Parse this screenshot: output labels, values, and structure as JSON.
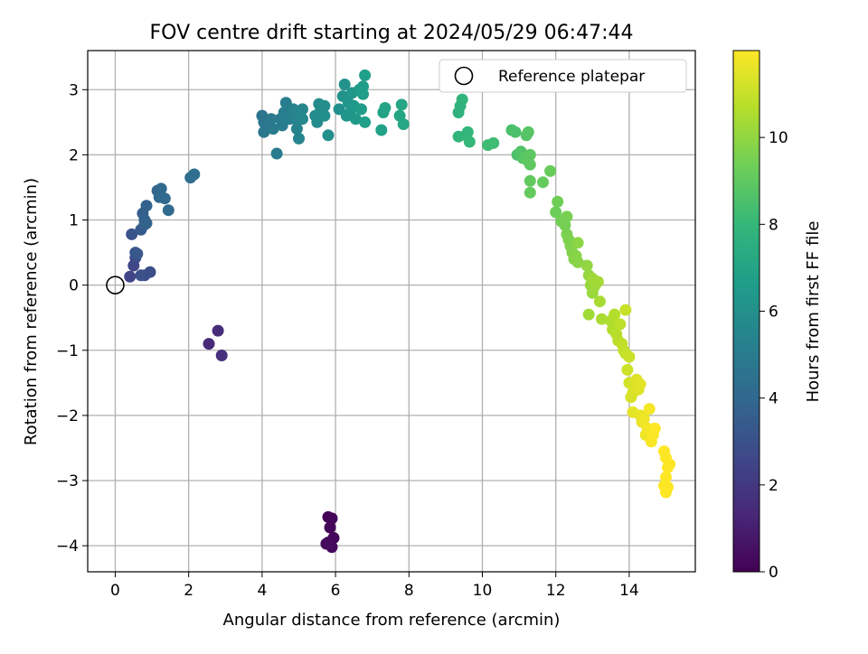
{
  "chart_data": {
    "type": "scatter",
    "title": "FOV centre drift starting at 2024/05/29 06:47:44",
    "xlabel": "Angular distance from reference (arcmin)",
    "ylabel": "Rotation from reference (arcmin)",
    "xlim": [
      -0.75,
      15.8
    ],
    "ylim": [
      -4.4,
      3.6
    ],
    "x_ticks": [
      0,
      2,
      4,
      6,
      8,
      10,
      12,
      14
    ],
    "y_ticks": [
      -4,
      -3,
      -2,
      -1,
      0,
      1,
      2,
      3
    ],
    "x_tick_labels": [
      "0",
      "2",
      "4",
      "6",
      "8",
      "10",
      "12",
      "14"
    ],
    "y_tick_labels": [
      "−4",
      "−3",
      "−2",
      "−1",
      "0",
      "1",
      "2",
      "3"
    ],
    "grid": true,
    "legend": {
      "placement": "top-right",
      "entries": [
        "Reference platepar"
      ]
    },
    "reference_point": {
      "x": 0,
      "y": 0
    },
    "colorbar": {
      "label": "Hours from first FF file",
      "min": 0,
      "max": 12,
      "ticks": [
        0,
        2,
        4,
        6,
        8,
        10
      ],
      "tick_labels": [
        "0",
        "2",
        "4",
        "6",
        "8",
        "10"
      ],
      "colormap": "viridis"
    },
    "series": [
      {
        "points": [
          [
            5.8,
            -3.56,
            0.05
          ],
          [
            5.9,
            -3.58,
            0.1
          ],
          [
            5.85,
            -3.72,
            0.15
          ],
          [
            5.95,
            -3.88,
            0.2
          ],
          [
            5.8,
            -3.95,
            0.25
          ],
          [
            5.9,
            -4.02,
            0.3
          ],
          [
            5.75,
            -3.97,
            0.35
          ],
          [
            2.55,
            -0.9,
            1.4
          ],
          [
            2.8,
            -0.7,
            1.5
          ],
          [
            2.9,
            -1.08,
            1.6
          ],
          [
            0.4,
            0.13,
            2.5
          ],
          [
            0.5,
            0.3,
            2.6
          ],
          [
            0.55,
            0.42,
            2.7
          ],
          [
            0.8,
            0.15,
            2.8
          ],
          [
            0.95,
            0.2,
            2.9
          ],
          [
            0.7,
            0.15,
            3.0
          ],
          [
            0.45,
            0.78,
            3.1
          ],
          [
            0.55,
            0.5,
            3.2
          ],
          [
            0.6,
            0.48,
            3.3
          ],
          [
            0.7,
            0.85,
            3.4
          ],
          [
            0.8,
            0.93,
            3.5
          ],
          [
            0.75,
            1.1,
            3.6
          ],
          [
            0.85,
            1.22,
            3.7
          ],
          [
            0.8,
            1.0,
            3.75
          ],
          [
            0.85,
            0.95,
            3.8
          ],
          [
            1.15,
            1.45,
            3.9
          ],
          [
            1.25,
            1.48,
            4.0
          ],
          [
            1.2,
            1.35,
            4.05
          ],
          [
            1.35,
            1.33,
            4.1
          ],
          [
            1.45,
            1.15,
            4.15
          ],
          [
            2.05,
            1.65,
            4.25
          ],
          [
            2.15,
            1.7,
            4.3
          ],
          [
            4.0,
            2.6,
            4.6
          ],
          [
            4.05,
            2.5,
            4.65
          ],
          [
            4.1,
            2.4,
            4.7
          ],
          [
            4.05,
            2.35,
            4.75
          ],
          [
            4.2,
            2.45,
            4.8
          ],
          [
            4.25,
            2.55,
            4.85
          ],
          [
            4.3,
            2.4,
            4.9
          ],
          [
            4.4,
            2.02,
            4.95
          ],
          [
            4.5,
            2.55,
            5.0
          ],
          [
            4.55,
            2.45,
            5.05
          ],
          [
            4.6,
            2.65,
            5.1
          ],
          [
            4.65,
            2.8,
            5.15
          ],
          [
            4.7,
            2.6,
            5.2
          ],
          [
            4.75,
            2.55,
            5.25
          ],
          [
            4.85,
            2.7,
            5.3
          ],
          [
            4.9,
            2.55,
            5.35
          ],
          [
            4.95,
            2.4,
            5.4
          ],
          [
            5.0,
            2.25,
            5.45
          ],
          [
            5.0,
            2.65,
            5.5
          ],
          [
            5.1,
            2.7,
            5.55
          ],
          [
            5.1,
            2.55,
            5.6
          ],
          [
            5.45,
            2.6,
            5.7
          ],
          [
            5.5,
            2.5,
            5.75
          ],
          [
            5.55,
            2.78,
            5.8
          ],
          [
            5.6,
            2.7,
            5.85
          ],
          [
            5.7,
            2.75,
            5.9
          ],
          [
            5.7,
            2.6,
            5.95
          ],
          [
            5.8,
            2.3,
            6.0
          ],
          [
            6.1,
            2.7,
            6.05
          ],
          [
            6.25,
            3.08,
            6.1
          ],
          [
            6.2,
            2.9,
            6.15
          ],
          [
            6.3,
            2.6,
            6.2
          ],
          [
            6.35,
            2.8,
            6.25
          ],
          [
            6.4,
            2.65,
            6.3
          ],
          [
            6.45,
            2.95,
            6.35
          ],
          [
            6.5,
            2.75,
            6.4
          ],
          [
            6.55,
            2.55,
            6.45
          ],
          [
            6.65,
            3.0,
            6.5
          ],
          [
            6.7,
            2.7,
            6.55
          ],
          [
            6.75,
            3.05,
            6.6
          ],
          [
            6.75,
            2.93,
            6.65
          ],
          [
            6.8,
            3.22,
            6.7
          ],
          [
            6.8,
            2.5,
            6.75
          ],
          [
            7.25,
            2.38,
            6.85
          ],
          [
            7.3,
            2.65,
            6.9
          ],
          [
            7.35,
            2.72,
            6.95
          ],
          [
            7.75,
            2.6,
            7.05
          ],
          [
            7.8,
            2.77,
            7.1
          ],
          [
            7.85,
            2.47,
            7.15
          ],
          [
            9.35,
            2.65,
            7.7
          ],
          [
            9.4,
            2.75,
            7.75
          ],
          [
            9.45,
            2.85,
            7.8
          ],
          [
            9.35,
            2.28,
            7.85
          ],
          [
            9.55,
            2.3,
            7.9
          ],
          [
            9.6,
            2.35,
            7.95
          ],
          [
            9.65,
            2.2,
            8.0
          ],
          [
            10.15,
            2.15,
            8.2
          ],
          [
            10.3,
            2.18,
            8.25
          ],
          [
            10.8,
            2.38,
            8.5
          ],
          [
            10.9,
            2.35,
            8.55
          ],
          [
            10.95,
            2.0,
            8.6
          ],
          [
            11.05,
            2.05,
            8.65
          ],
          [
            11.1,
            1.95,
            8.7
          ],
          [
            11.2,
            2.3,
            8.75
          ],
          [
            11.25,
            2.35,
            8.8
          ],
          [
            11.15,
            1.95,
            8.85
          ],
          [
            11.25,
            1.9,
            8.9
          ],
          [
            11.3,
            2.0,
            8.95
          ],
          [
            11.3,
            1.85,
            9.0
          ],
          [
            11.3,
            1.6,
            9.05
          ],
          [
            11.3,
            1.42,
            9.1
          ],
          [
            11.65,
            1.58,
            9.15
          ],
          [
            11.85,
            1.75,
            9.2
          ],
          [
            12.0,
            1.12,
            9.3
          ],
          [
            12.05,
            1.28,
            9.35
          ],
          [
            12.15,
            0.98,
            9.4
          ],
          [
            12.25,
            0.92,
            9.45
          ],
          [
            12.3,
            1.05,
            9.5
          ],
          [
            12.3,
            0.78,
            9.55
          ],
          [
            12.35,
            0.7,
            9.6
          ],
          [
            12.4,
            0.6,
            9.65
          ],
          [
            12.45,
            0.5,
            9.7
          ],
          [
            12.5,
            0.4,
            9.75
          ],
          [
            12.55,
            0.45,
            9.8
          ],
          [
            12.6,
            0.35,
            9.85
          ],
          [
            12.6,
            0.65,
            9.9
          ],
          [
            12.85,
            0.3,
            10.0
          ],
          [
            12.9,
            0.15,
            10.05
          ],
          [
            12.95,
            0.0,
            10.1
          ],
          [
            13.0,
            -0.12,
            10.15
          ],
          [
            13.05,
            -0.02,
            10.2
          ],
          [
            13.0,
            0.1,
            10.25
          ],
          [
            12.9,
            -0.45,
            10.3
          ],
          [
            13.15,
            0.05,
            10.35
          ],
          [
            13.2,
            -0.25,
            10.4
          ],
          [
            13.25,
            -0.52,
            10.45
          ],
          [
            13.5,
            -0.55,
            10.55
          ],
          [
            13.55,
            -0.68,
            10.6
          ],
          [
            13.6,
            -0.45,
            10.65
          ],
          [
            13.65,
            -0.75,
            10.7
          ],
          [
            13.7,
            -0.85,
            10.75
          ],
          [
            13.75,
            -0.6,
            10.8
          ],
          [
            13.8,
            -0.9,
            10.85
          ],
          [
            13.85,
            -1.0,
            10.9
          ],
          [
            13.9,
            -1.05,
            10.95
          ],
          [
            13.9,
            -0.38,
            11.0
          ],
          [
            14.0,
            -1.1,
            11.05
          ],
          [
            13.95,
            -1.3,
            11.1
          ],
          [
            14.0,
            -1.5,
            11.2
          ],
          [
            14.05,
            -1.72,
            11.25
          ],
          [
            14.1,
            -1.65,
            11.3
          ],
          [
            14.15,
            -1.55,
            11.35
          ],
          [
            14.2,
            -1.45,
            11.4
          ],
          [
            14.25,
            -1.6,
            11.45
          ],
          [
            14.3,
            -1.52,
            11.5
          ],
          [
            14.1,
            -1.95,
            11.55
          ],
          [
            14.3,
            -2.0,
            11.6
          ],
          [
            14.35,
            -2.1,
            11.65
          ],
          [
            14.4,
            -2.05,
            11.7
          ],
          [
            14.45,
            -2.3,
            11.75
          ],
          [
            14.5,
            -2.2,
            11.8
          ],
          [
            14.55,
            -1.9,
            11.85
          ],
          [
            14.6,
            -2.4,
            11.9
          ],
          [
            14.65,
            -2.3,
            11.95
          ],
          [
            14.7,
            -2.2,
            12.0
          ],
          [
            14.95,
            -2.55,
            12.1
          ],
          [
            15.0,
            -2.65,
            12.15
          ],
          [
            15.05,
            -2.8,
            12.2
          ],
          [
            15.0,
            -2.95,
            12.25
          ],
          [
            14.95,
            -3.08,
            12.3
          ],
          [
            15.05,
            -3.1,
            12.35
          ],
          [
            15.1,
            -2.75,
            12.4
          ],
          [
            15.0,
            -3.18,
            12.45
          ]
        ]
      }
    ],
    "colors": {
      "reference_marker_stroke": "#000000",
      "grid": "#b0b0b0",
      "viridis_stops": [
        "#440154",
        "#482878",
        "#3e4989",
        "#31688e",
        "#26828e",
        "#1f9e89",
        "#35b779",
        "#6ece58",
        "#b5de2b",
        "#fde725"
      ]
    }
  }
}
